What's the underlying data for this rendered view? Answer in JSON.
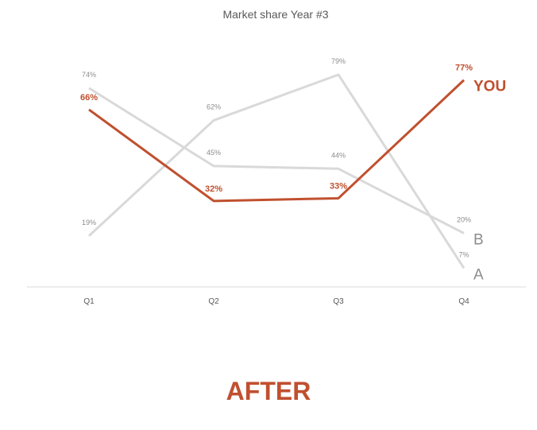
{
  "chart_data": {
    "type": "line",
    "title": "Market share Year #3",
    "categories": [
      "Q1",
      "Q2",
      "Q3",
      "Q4"
    ],
    "ylim": [
      0,
      100
    ],
    "grid": false,
    "series": [
      {
        "name": "A",
        "values": [
          19,
          62,
          79,
          7
        ],
        "labels": [
          "19%",
          "62%",
          "79%",
          "7%"
        ],
        "color": "#d9d9d9",
        "highlight": false
      },
      {
        "name": "B",
        "values": [
          74,
          45,
          44,
          20
        ],
        "labels": [
          "74%",
          "45%",
          "44%",
          "20%"
        ],
        "color": "#d9d9d9",
        "highlight": false
      },
      {
        "name": "YOU",
        "values": [
          66,
          32,
          33,
          77
        ],
        "labels": [
          "66%",
          "32%",
          "33%",
          "77%"
        ],
        "color": "#c0502f",
        "highlight": true
      }
    ]
  },
  "footer": {
    "text": "AFTER"
  }
}
